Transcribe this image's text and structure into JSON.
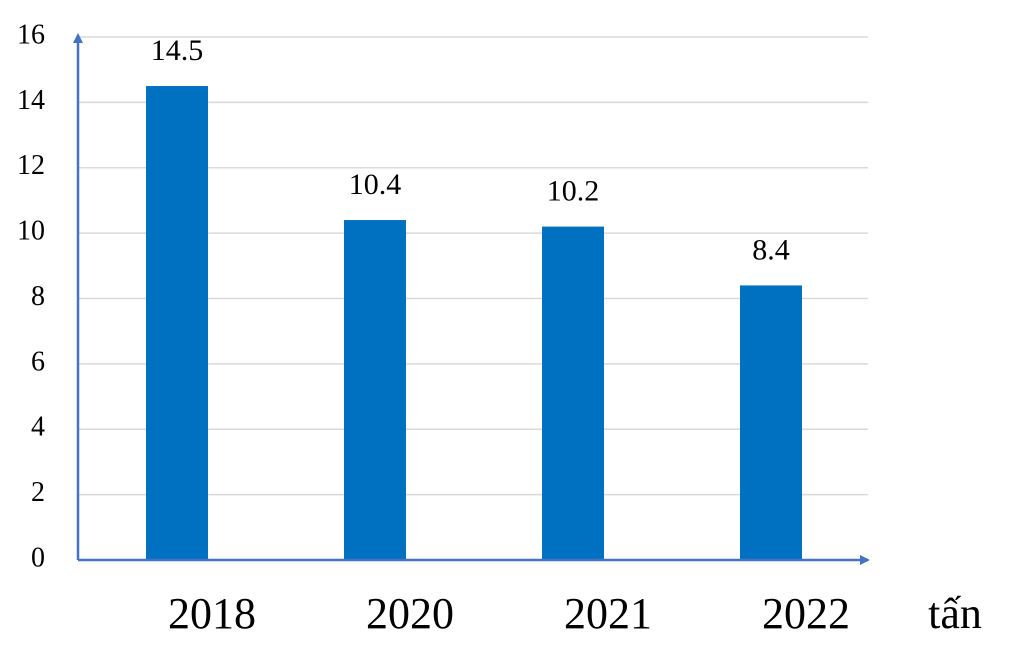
{
  "chart_data": {
    "type": "bar",
    "categories": [
      "2018",
      "2020",
      "2021",
      "2022"
    ],
    "values": [
      14.5,
      10.4,
      10.2,
      8.4
    ],
    "color": "#0070c0",
    "x_label": "tấn",
    "ylim": [
      0,
      16
    ],
    "yticks": [
      0,
      2,
      4,
      6,
      8,
      10,
      12,
      14,
      16
    ],
    "grid": true
  }
}
